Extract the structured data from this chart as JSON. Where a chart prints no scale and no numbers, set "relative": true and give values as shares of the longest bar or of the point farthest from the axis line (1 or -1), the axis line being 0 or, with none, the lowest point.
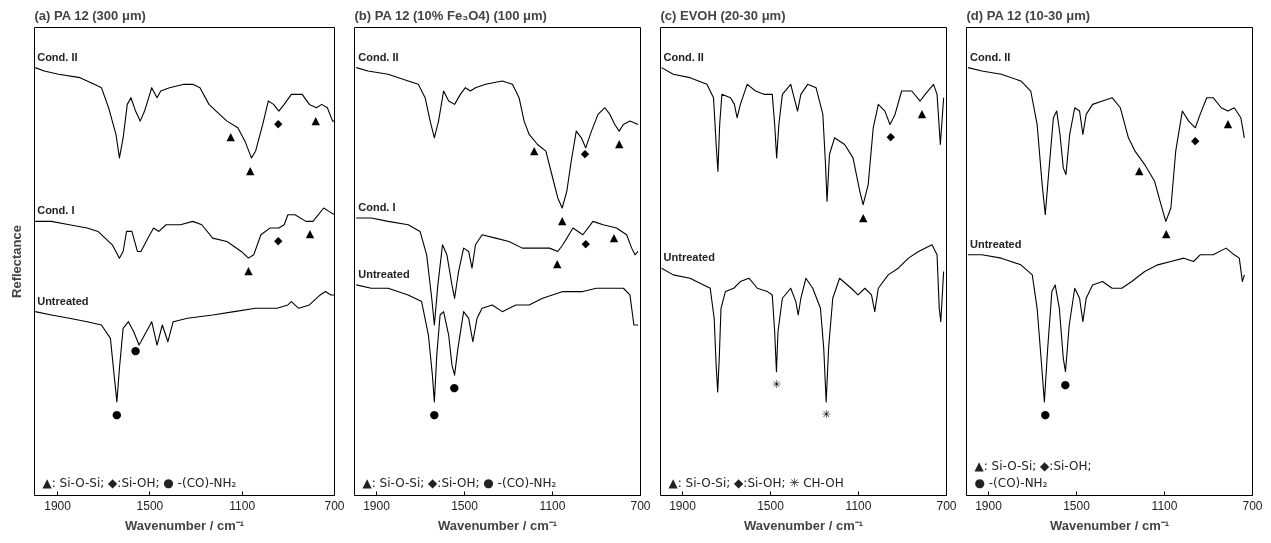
{
  "chart_data": [
    {
      "type": "line",
      "title": "(a)  PA 12 (300 μm)",
      "xlabel": "Wavenumber / cm⁻¹",
      "ylabel": "Reflectance",
      "xlim": [
        2000,
        700
      ],
      "xticks": [
        1900,
        1500,
        1100,
        700
      ],
      "relative": true,
      "tick_labels": "x",
      "grid": false,
      "series": [
        {
          "name": "Cond. II",
          "color": "#000000",
          "x": [
            1997,
            1958,
            1896,
            1803,
            1741,
            1710,
            1679,
            1647,
            1632,
            1616,
            1598,
            1582,
            1562,
            1542,
            1523,
            1492,
            1469,
            1453,
            1415,
            1352,
            1314,
            1283,
            1244,
            1213,
            1166,
            1119,
            1088,
            1060,
            1042,
            1011,
            987,
            964,
            941,
            918,
            887,
            840,
            809,
            778,
            755,
            731,
            708,
            700
          ],
          "values": [
            1.0,
            0.99,
            0.98,
            0.97,
            0.95,
            0.94,
            0.88,
            0.8,
            0.73,
            0.79,
            0.89,
            0.91,
            0.87,
            0.84,
            0.87,
            0.94,
            0.91,
            0.93,
            0.94,
            0.95,
            0.95,
            0.94,
            0.89,
            0.87,
            0.84,
            0.82,
            0.78,
            0.73,
            0.75,
            0.83,
            0.9,
            0.89,
            0.87,
            0.89,
            0.92,
            0.92,
            0.89,
            0.88,
            0.89,
            0.88,
            0.84,
            0.84
          ]
        },
        {
          "name": "Cond. I",
          "color": "#000000",
          "x": [
            1997,
            1927,
            1849,
            1772,
            1725,
            1694,
            1663,
            1632,
            1616,
            1601,
            1578,
            1554,
            1539,
            1508,
            1484,
            1461,
            1430,
            1368,
            1314,
            1275,
            1228,
            1166,
            1104,
            1073,
            1050,
            1019,
            980,
            941,
            918,
            902,
            871,
            824,
            793,
            747,
            724,
            700
          ],
          "values": [
            0.54,
            0.54,
            0.53,
            0.52,
            0.51,
            0.49,
            0.47,
            0.43,
            0.45,
            0.51,
            0.51,
            0.45,
            0.45,
            0.49,
            0.52,
            0.51,
            0.53,
            0.53,
            0.54,
            0.53,
            0.49,
            0.48,
            0.45,
            0.43,
            0.44,
            0.5,
            0.52,
            0.52,
            0.53,
            0.56,
            0.56,
            0.54,
            0.54,
            0.58,
            0.57,
            0.56
          ]
        },
        {
          "name": "Untreated",
          "color": "#000000",
          "x": [
            1997,
            1927,
            1849,
            1772,
            1710,
            1671,
            1655,
            1643,
            1632,
            1616,
            1593,
            1570,
            1547,
            1523,
            1492,
            1469,
            1446,
            1422,
            1399,
            1337,
            1228,
            1135,
            1042,
            949,
            902,
            887,
            855,
            809,
            762,
            739,
            716,
            700
          ],
          "values": [
            0.27,
            0.26,
            0.25,
            0.24,
            0.23,
            0.19,
            0.08,
            0.0,
            0.1,
            0.22,
            0.24,
            0.21,
            0.17,
            0.2,
            0.24,
            0.17,
            0.23,
            0.18,
            0.24,
            0.25,
            0.26,
            0.27,
            0.28,
            0.28,
            0.29,
            0.3,
            0.28,
            0.29,
            0.32,
            0.33,
            0.32,
            0.32
          ]
        }
      ],
      "annotations": [
        {
          "text": "▲",
          "x": 1150,
          "y": 0.83
        },
        {
          "text": "▲",
          "x": 1065,
          "y": 0.73
        },
        {
          "text": "▲",
          "x": 781,
          "y": 0.88
        },
        {
          "text": "▲",
          "x": 1073,
          "y": 0.43
        },
        {
          "text": "▲",
          "x": 806,
          "y": 0.54
        },
        {
          "text": "◆",
          "x": 944,
          "y": 0.87
        },
        {
          "text": "◆",
          "x": 944,
          "y": 0.52
        },
        {
          "text": "●",
          "x": 1562,
          "y": 0.19
        },
        {
          "text": "●",
          "x": 1643,
          "y": 0.0
        },
        "▲: Si-O-Si; ◆:Si-OH; ● -(CO)-NH₂"
      ]
    },
    {
      "type": "line",
      "title": "(b)  PA 12 (10% Fe₃O4) (100 μm)",
      "xlabel": "Wavenumber / cm⁻¹",
      "xlim": [
        2000,
        700
      ],
      "xticks": [
        1900,
        1500,
        1100,
        700
      ],
      "relative": true,
      "tick_labels": "x",
      "grid": false,
      "series": [
        {
          "name": "Cond. II",
          "color": "#000000",
          "x": [
            1992,
            1939,
            1847,
            1756,
            1710,
            1679,
            1656,
            1637,
            1618,
            1595,
            1572,
            1545,
            1519,
            1496,
            1473,
            1450,
            1404,
            1328,
            1282,
            1252,
            1229,
            1206,
            1168,
            1130,
            1107,
            1076,
            1056,
            1035,
            1015,
            992,
            969,
            949,
            923,
            893,
            862,
            839,
            817,
            797,
            778,
            748,
            711
          ],
          "values": [
            1.0,
            0.99,
            0.98,
            0.96,
            0.95,
            0.91,
            0.84,
            0.79,
            0.84,
            0.93,
            0.9,
            0.89,
            0.92,
            0.94,
            0.93,
            0.94,
            0.95,
            0.96,
            0.95,
            0.91,
            0.84,
            0.8,
            0.77,
            0.75,
            0.69,
            0.61,
            0.58,
            0.63,
            0.72,
            0.81,
            0.79,
            0.76,
            0.81,
            0.86,
            0.88,
            0.86,
            0.83,
            0.81,
            0.83,
            0.84,
            0.83
          ]
        },
        {
          "name": "Cond. I",
          "color": "#000000",
          "x": [
            1992,
            1924,
            1847,
            1756,
            1702,
            1672,
            1649,
            1637,
            1621,
            1600,
            1580,
            1557,
            1545,
            1527,
            1504,
            1481,
            1466,
            1450,
            1420,
            1359,
            1298,
            1237,
            1175,
            1114,
            1076,
            1053,
            1007,
            962,
            916,
            870,
            809,
            763,
            740,
            725,
            711
          ],
          "values": [
            0.55,
            0.55,
            0.54,
            0.53,
            0.51,
            0.44,
            0.31,
            0.23,
            0.35,
            0.47,
            0.44,
            0.35,
            0.31,
            0.39,
            0.46,
            0.45,
            0.4,
            0.47,
            0.5,
            0.49,
            0.48,
            0.46,
            0.46,
            0.46,
            0.45,
            0.47,
            0.52,
            0.5,
            0.54,
            0.53,
            0.52,
            0.5,
            0.46,
            0.44,
            0.45
          ]
        },
        {
          "name": "Untreated",
          "color": "#000000",
          "x": [
            1992,
            1924,
            1847,
            1756,
            1695,
            1664,
            1646,
            1637,
            1626,
            1611,
            1595,
            1572,
            1557,
            1545,
            1530,
            1504,
            1481,
            1462,
            1443,
            1420,
            1374,
            1328,
            1267,
            1206,
            1145,
            1053,
            962,
            901,
            839,
            778,
            748,
            730,
            711
          ],
          "values": [
            0.35,
            0.34,
            0.34,
            0.32,
            0.3,
            0.2,
            0.08,
            0.0,
            0.14,
            0.26,
            0.27,
            0.2,
            0.11,
            0.08,
            0.16,
            0.27,
            0.25,
            0.18,
            0.25,
            0.28,
            0.29,
            0.27,
            0.29,
            0.29,
            0.31,
            0.33,
            0.33,
            0.34,
            0.34,
            0.34,
            0.32,
            0.23,
            0.23
          ]
        }
      ],
      "annotations": [
        {
          "text": "▲",
          "x": 1183,
          "y": 0.79
        },
        {
          "text": "▲",
          "x": 1056,
          "y": 0.58
        },
        {
          "text": "▲",
          "x": 797,
          "y": 0.81
        },
        {
          "text": "▲",
          "x": 1079,
          "y": 0.45
        },
        {
          "text": "▲",
          "x": 821,
          "y": 0.53
        },
        {
          "text": "◆",
          "x": 952,
          "y": 0.78
        },
        {
          "text": "◆",
          "x": 949,
          "y": 0.51
        },
        {
          "text": "●",
          "x": 1546,
          "y": 0.08
        },
        {
          "text": "●",
          "x": 1637,
          "y": 0.0
        },
        "▲: Si-O-Si; ◆:Si-OH; ● -(CO)-NH₂"
      ]
    },
    {
      "type": "line",
      "title": "(c)  EVOH (20-30 μm)",
      "xlabel": "Wavenumber / cm⁻¹",
      "xlim": [
        2000,
        700
      ],
      "xticks": [
        1900,
        1500,
        1100,
        700
      ],
      "relative": true,
      "tick_labels": "x",
      "grid": false,
      "series": [
        {
          "name": "Cond. II",
          "color": "#000000",
          "x": [
            1995,
            1942,
            1866,
            1789,
            1759,
            1747,
            1739,
            1731,
            1721,
            1682,
            1664,
            1652,
            1637,
            1606,
            1568,
            1530,
            1492,
            1481,
            1472,
            1462,
            1446,
            1408,
            1385,
            1377,
            1362,
            1331,
            1293,
            1262,
            1250,
            1243,
            1232,
            1209,
            1163,
            1125,
            1094,
            1079,
            1056,
            1033,
            1010,
            980,
            957,
            934,
            904,
            858,
            820,
            797,
            759,
            743,
            728,
            713
          ],
          "values": [
            1.0,
            0.98,
            0.97,
            0.95,
            0.91,
            0.77,
            0.69,
            0.83,
            0.92,
            0.91,
            0.89,
            0.85,
            0.89,
            0.95,
            0.93,
            0.92,
            0.92,
            0.83,
            0.73,
            0.83,
            0.92,
            0.95,
            0.89,
            0.87,
            0.92,
            0.95,
            0.94,
            0.86,
            0.71,
            0.6,
            0.74,
            0.79,
            0.77,
            0.73,
            0.63,
            0.59,
            0.65,
            0.82,
            0.89,
            0.87,
            0.83,
            0.86,
            0.93,
            0.93,
            0.9,
            0.92,
            0.95,
            0.92,
            0.77,
            0.91
          ]
        },
        {
          "name": "Untreated",
          "color": "#000000",
          "x": [
            1995,
            1942,
            1866,
            1774,
            1756,
            1747,
            1740,
            1733,
            1725,
            1705,
            1667,
            1637,
            1598,
            1560,
            1514,
            1492,
            1481,
            1473,
            1466,
            1446,
            1408,
            1385,
            1374,
            1362,
            1339,
            1308,
            1273,
            1258,
            1247,
            1236,
            1217,
            1186,
            1133,
            1102,
            1071,
            1041,
            1026,
            1010,
            965,
            919,
            873,
            827,
            766,
            743,
            733,
            726,
            713
          ],
          "values": [
            0.4,
            0.38,
            0.37,
            0.34,
            0.25,
            0.11,
            0.03,
            0.13,
            0.28,
            0.33,
            0.34,
            0.36,
            0.37,
            0.34,
            0.33,
            0.32,
            0.21,
            0.09,
            0.21,
            0.31,
            0.34,
            0.3,
            0.26,
            0.31,
            0.37,
            0.34,
            0.28,
            0.16,
            0.0,
            0.16,
            0.31,
            0.37,
            0.34,
            0.32,
            0.34,
            0.32,
            0.27,
            0.34,
            0.38,
            0.4,
            0.43,
            0.45,
            0.47,
            0.44,
            0.28,
            0.24,
            0.39
          ]
        }
      ],
      "annotations": [
        {
          "text": "▲",
          "x": 1079,
          "y": 0.59
        },
        {
          "text": "▲",
          "x": 812,
          "y": 0.9
        },
        {
          "text": "◆",
          "x": 954,
          "y": 0.83
        },
        {
          "text": "✳",
          "x": 1473,
          "y": 0.09
        },
        {
          "text": "✳",
          "x": 1247,
          "y": 0.0
        },
        "▲: Si-O-Si; ◆:Si-OH; ✳ CH-OH"
      ]
    },
    {
      "type": "line",
      "title": "(d)  PA 12 (10-30 μm)",
      "xlabel": "Wavenumber / cm⁻¹",
      "xlim": [
        2000,
        700
      ],
      "xticks": [
        1900,
        1500,
        1100,
        700
      ],
      "relative": true,
      "tick_labels": "x",
      "grid": false,
      "series": [
        {
          "name": "Cond. II",
          "color": "#000000",
          "x": [
            1993,
            1930,
            1842,
            1753,
            1708,
            1679,
            1656,
            1642,
            1627,
            1605,
            1590,
            1575,
            1560,
            1548,
            1531,
            1508,
            1486,
            1471,
            1456,
            1427,
            1382,
            1338,
            1301,
            1264,
            1234,
            1190,
            1145,
            1116,
            1094,
            1071,
            1049,
            1019,
            990,
            960,
            938,
            908,
            879,
            842,
            812,
            783,
            753,
            737
          ],
          "values": [
            1.0,
            0.99,
            0.98,
            0.96,
            0.93,
            0.83,
            0.65,
            0.56,
            0.68,
            0.85,
            0.87,
            0.8,
            0.7,
            0.68,
            0.8,
            0.88,
            0.87,
            0.8,
            0.86,
            0.89,
            0.9,
            0.91,
            0.88,
            0.79,
            0.75,
            0.71,
            0.66,
            0.59,
            0.54,
            0.58,
            0.75,
            0.87,
            0.84,
            0.82,
            0.86,
            0.91,
            0.91,
            0.88,
            0.87,
            0.88,
            0.85,
            0.79
          ]
        },
        {
          "name": "Untreated",
          "color": "#000000",
          "x": [
            1993,
            1930,
            1842,
            1753,
            1701,
            1679,
            1661,
            1646,
            1631,
            1612,
            1597,
            1578,
            1560,
            1550,
            1533,
            1508,
            1486,
            1471,
            1456,
            1427,
            1382,
            1338,
            1294,
            1249,
            1190,
            1131,
            1071,
            1012,
            968,
            938,
            879,
            820,
            783,
            760,
            746,
            737
          ],
          "values": [
            0.44,
            0.44,
            0.43,
            0.41,
            0.38,
            0.28,
            0.13,
            0.0,
            0.16,
            0.33,
            0.35,
            0.28,
            0.13,
            0.09,
            0.23,
            0.34,
            0.31,
            0.24,
            0.31,
            0.35,
            0.36,
            0.34,
            0.34,
            0.36,
            0.39,
            0.41,
            0.42,
            0.43,
            0.42,
            0.44,
            0.44,
            0.46,
            0.44,
            0.43,
            0.36,
            0.38
          ]
        }
      ],
      "annotations": [
        {
          "text": "▲",
          "x": 1215,
          "y": 0.73
        },
        {
          "text": "▲",
          "x": 1092,
          "y": 0.54
        },
        {
          "text": "▲",
          "x": 812,
          "y": 0.87
        },
        {
          "text": "◆",
          "x": 960,
          "y": 0.82
        },
        {
          "text": "●",
          "x": 1551,
          "y": 0.09
        },
        {
          "text": "●",
          "x": 1642,
          "y": 0.0
        },
        "▲: Si-O-Si; ◆:Si-OH;",
        "● -(CO)-NH₂"
      ]
    }
  ]
}
